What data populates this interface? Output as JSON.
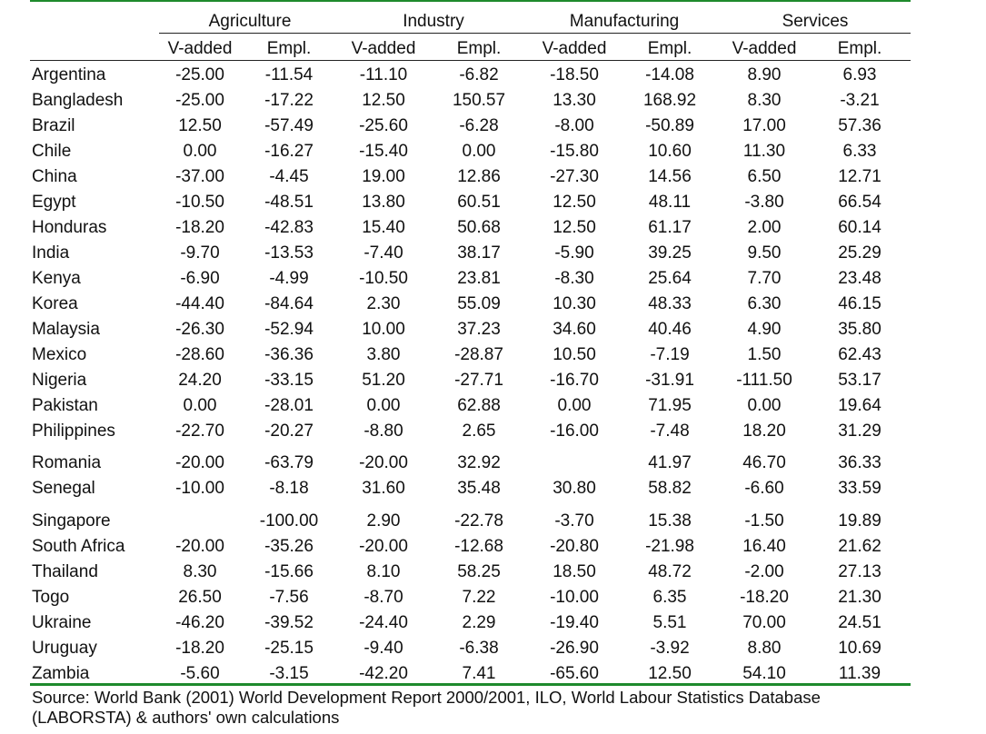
{
  "table": {
    "groups": [
      "Agriculture",
      "Industry",
      "Manufacturing",
      "Services"
    ],
    "subheaders": [
      "V-added",
      "Empl.",
      "V-added",
      "Empl.",
      "V-added",
      "Empl.",
      "V-added",
      "Empl."
    ],
    "rows": [
      {
        "country": "Argentina",
        "values": [
          "-25.00",
          "-11.54",
          "-11.10",
          "-6.82",
          "-18.50",
          "-14.08",
          "8.90",
          "6.93"
        ]
      },
      {
        "country": "Bangladesh",
        "values": [
          "-25.00",
          "-17.22",
          "12.50",
          "150.57",
          "13.30",
          "168.92",
          "8.30",
          "-3.21"
        ]
      },
      {
        "country": "Brazil",
        "values": [
          "12.50",
          "-57.49",
          "-25.60",
          "-6.28",
          "-8.00",
          "-50.89",
          "17.00",
          "57.36"
        ]
      },
      {
        "country": "Chile",
        "values": [
          "0.00",
          "-16.27",
          "-15.40",
          "0.00",
          "-15.80",
          "10.60",
          "11.30",
          "6.33"
        ]
      },
      {
        "country": "China",
        "values": [
          "-37.00",
          "-4.45",
          "19.00",
          "12.86",
          "-27.30",
          "14.56",
          "6.50",
          "12.71"
        ]
      },
      {
        "country": "Egypt",
        "values": [
          "-10.50",
          "-48.51",
          "13.80",
          "60.51",
          "12.50",
          "48.11",
          "-3.80",
          "66.54"
        ]
      },
      {
        "country": "Honduras",
        "values": [
          "-18.20",
          "-42.83",
          "15.40",
          "50.68",
          "12.50",
          "61.17",
          "2.00",
          "60.14"
        ]
      },
      {
        "country": "India",
        "values": [
          "-9.70",
          "-13.53",
          "-7.40",
          "38.17",
          "-5.90",
          "39.25",
          "9.50",
          "25.29"
        ]
      },
      {
        "country": "Kenya",
        "values": [
          "-6.90",
          "-4.99",
          "-10.50",
          "23.81",
          "-8.30",
          "25.64",
          "7.70",
          "23.48"
        ]
      },
      {
        "country": "Korea",
        "values": [
          "-44.40",
          "-84.64",
          "2.30",
          "55.09",
          "10.30",
          "48.33",
          "6.30",
          "46.15"
        ]
      },
      {
        "country": "Malaysia",
        "values": [
          "-26.30",
          "-52.94",
          "10.00",
          "37.23",
          "34.60",
          "40.46",
          "4.90",
          "35.80"
        ]
      },
      {
        "country": "Mexico",
        "values": [
          "-28.60",
          "-36.36",
          "3.80",
          "-28.87",
          "10.50",
          "-7.19",
          "1.50",
          "62.43"
        ]
      },
      {
        "country": "Nigeria",
        "values": [
          "24.20",
          "-33.15",
          "51.20",
          "-27.71",
          "-16.70",
          "-31.91",
          "-111.50",
          "53.17"
        ]
      },
      {
        "country": "Pakistan",
        "values": [
          "0.00",
          "-28.01",
          "0.00",
          "62.88",
          "0.00",
          "71.95",
          "0.00",
          "19.64"
        ]
      },
      {
        "country": "Philippines",
        "values": [
          "-22.70",
          "-20.27",
          "-8.80",
          "2.65",
          "-16.00",
          "-7.48",
          "18.20",
          "31.29"
        ]
      },
      {
        "country": "Romania",
        "values": [
          "-20.00",
          "-63.79",
          "-20.00",
          "32.92",
          "",
          "41.97",
          "46.70",
          "36.33"
        ]
      },
      {
        "country": "Senegal",
        "values": [
          "-10.00",
          "-8.18",
          "31.60",
          "35.48",
          "30.80",
          "58.82",
          "-6.60",
          "33.59"
        ]
      },
      {
        "country": "Singapore",
        "values": [
          "",
          "-100.00",
          "2.90",
          "-22.78",
          "-3.70",
          "15.38",
          "-1.50",
          "19.89"
        ]
      },
      {
        "country": "South Africa",
        "values": [
          "-20.00",
          "-35.26",
          "-20.00",
          "-12.68",
          "-20.80",
          "-21.98",
          "16.40",
          "21.62"
        ]
      },
      {
        "country": "Thailand",
        "values": [
          "8.30",
          "-15.66",
          "8.10",
          "58.25",
          "18.50",
          "48.72",
          "-2.00",
          "27.13"
        ]
      },
      {
        "country": "Togo",
        "values": [
          "26.50",
          "-7.56",
          "-8.70",
          "7.22",
          "-10.00",
          "6.35",
          "-18.20",
          "21.30"
        ]
      },
      {
        "country": "Ukraine",
        "values": [
          "-46.20",
          "-39.52",
          "-24.40",
          "2.29",
          "-19.40",
          "5.51",
          "70.00",
          "24.51"
        ]
      },
      {
        "country": "Uruguay",
        "values": [
          "-18.20",
          "-25.15",
          "-9.40",
          "-6.38",
          "-26.90",
          "-3.92",
          "8.80",
          "10.69"
        ]
      },
      {
        "country": "Zambia",
        "values": [
          "-5.60",
          "-3.15",
          "-42.20",
          "7.41",
          "-65.60",
          "12.50",
          "54.10",
          "11.39"
        ]
      }
    ]
  },
  "source": {
    "line1": "Source: World Bank (2001) World Development Report 2000/2001, ILO, World Labour Statistics Database",
    "line2": "(LABORSTA) & authors' own calculations"
  },
  "colors": {
    "rule_green": "#1e8a2c",
    "text": "#111111"
  }
}
